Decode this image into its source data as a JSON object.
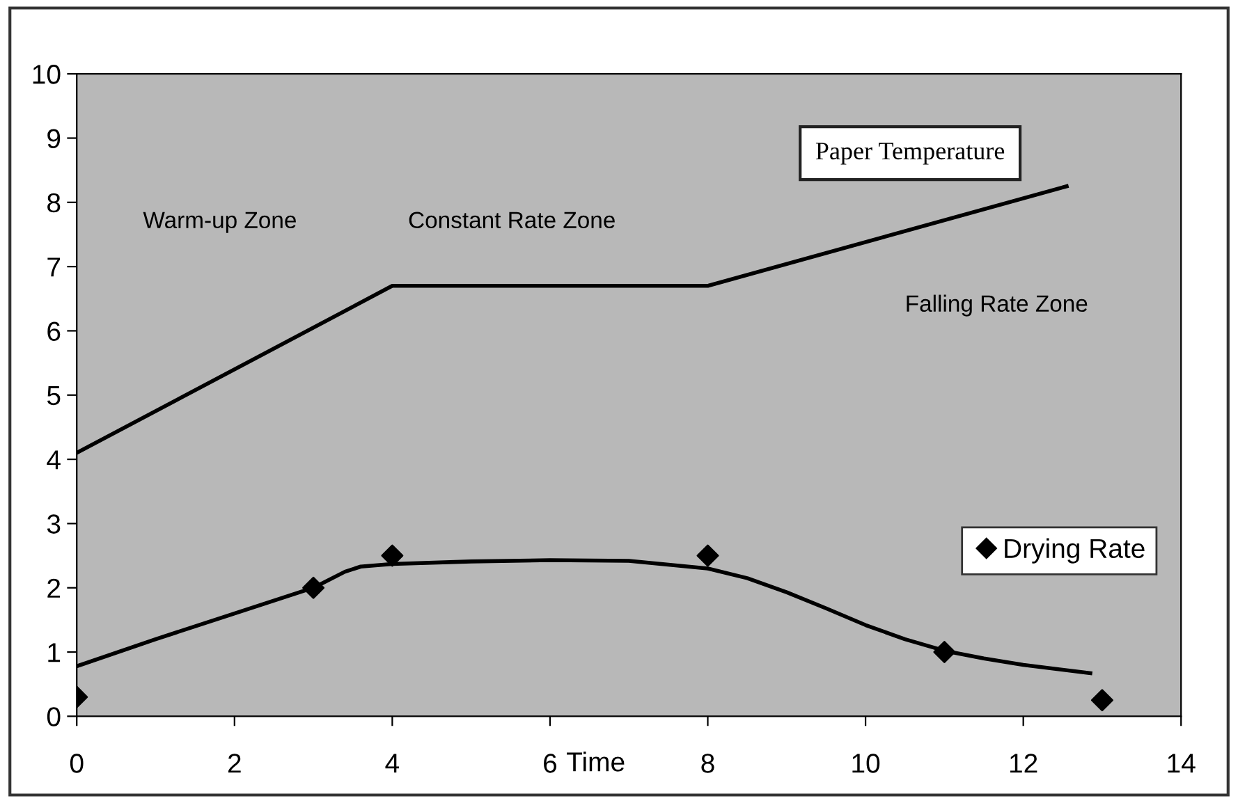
{
  "chart_data": {
    "type": "line",
    "xlabel": "Time",
    "xlim": [
      0,
      14
    ],
    "xticks": [
      0,
      2,
      4,
      6,
      8,
      10,
      12,
      14
    ],
    "ylim": [
      0,
      10
    ],
    "yticks": [
      0,
      1,
      2,
      3,
      4,
      5,
      6,
      7,
      8,
      9,
      10
    ],
    "series": [
      {
        "name": "Paper Temperature",
        "color": "#000000",
        "x": [
          0,
          4,
          8,
          12.55
        ],
        "values": [
          4.1,
          6.7,
          6.7,
          8.25
        ]
      },
      {
        "color": "#000000",
        "x": [
          0,
          1,
          2,
          3,
          3.4,
          3.6,
          4,
          5,
          6,
          7,
          8,
          8.5,
          9,
          9.5,
          10,
          10.5,
          11,
          11.5,
          12,
          12.85
        ],
        "values": [
          0.78,
          1.2,
          1.6,
          2.0,
          2.25,
          2.33,
          2.37,
          2.41,
          2.43,
          2.42,
          2.3,
          2.15,
          1.93,
          1.68,
          1.42,
          1.2,
          1.02,
          0.9,
          0.8,
          0.67
        ]
      },
      {
        "name": "Drying Rate",
        "type": "scatter",
        "color": "#000000",
        "marker": "diamond",
        "x": [
          0,
          3,
          4,
          8,
          11,
          13
        ],
        "values": [
          0.3,
          2.0,
          2.5,
          2.5,
          1.0,
          0.25
        ]
      }
    ],
    "annotations": [
      "Warm-up Zone",
      "Constant Rate Zone",
      "Falling Rate Zone"
    ],
    "legend": "right",
    "grid": false
  }
}
